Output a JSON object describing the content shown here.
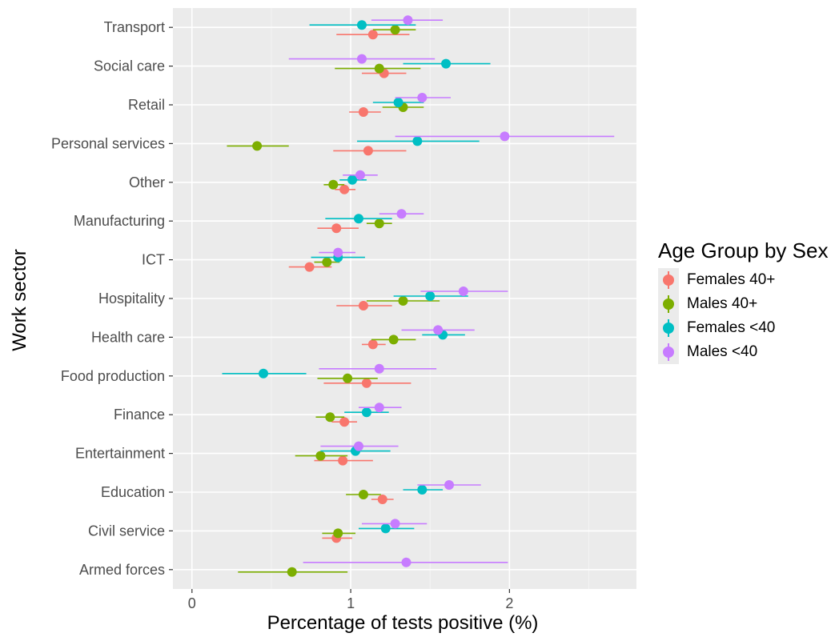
{
  "chart_data": {
    "type": "scatter",
    "xlabel": "Percentage of tests positive (%)",
    "ylabel": "Work sector",
    "xlim": [
      -0.12,
      2.8
    ],
    "x_ticks": [
      0,
      1,
      2
    ],
    "grid": true,
    "legend_title": "Age Group by Sex",
    "legend_position": "right",
    "categories": [
      "Transport",
      "Social care",
      "Retail",
      "Personal services",
      "Other",
      "Manufacturing",
      "ICT",
      "Hospitality",
      "Health care",
      "Food production",
      "Finance",
      "Entertainment",
      "Education",
      "Civil service",
      "Armed forces"
    ],
    "series": [
      {
        "name": "Females 40+",
        "color": "#F8766D",
        "values": [
          1.14,
          1.21,
          1.08,
          1.11,
          0.96,
          0.91,
          0.74,
          1.08,
          1.14,
          1.1,
          0.96,
          0.95,
          1.2,
          0.91,
          null
        ],
        "lower": [
          0.91,
          1.07,
          0.99,
          0.89,
          0.9,
          0.79,
          0.61,
          0.91,
          1.07,
          0.83,
          0.88,
          0.77,
          1.13,
          0.82,
          null
        ],
        "upper": [
          1.37,
          1.35,
          1.19,
          1.35,
          1.03,
          1.05,
          0.88,
          1.26,
          1.22,
          1.38,
          1.04,
          1.14,
          1.27,
          1.01,
          null
        ]
      },
      {
        "name": "Males 40+",
        "color": "#7CAE00",
        "values": [
          1.28,
          1.18,
          1.33,
          0.41,
          0.89,
          1.18,
          0.85,
          1.33,
          1.27,
          0.98,
          0.87,
          0.81,
          1.08,
          0.92,
          0.63
        ],
        "lower": [
          1.14,
          0.9,
          1.2,
          0.22,
          0.83,
          1.1,
          0.77,
          1.1,
          1.13,
          0.79,
          0.78,
          0.65,
          0.97,
          0.82,
          0.29
        ],
        "upper": [
          1.41,
          1.44,
          1.46,
          0.61,
          0.96,
          1.26,
          0.93,
          1.56,
          1.41,
          1.17,
          0.96,
          0.98,
          1.19,
          1.03,
          0.98
        ]
      },
      {
        "name": "Females <40",
        "color": "#00BFC4",
        "values": [
          1.07,
          1.6,
          1.3,
          1.42,
          1.01,
          1.05,
          0.92,
          1.5,
          1.58,
          0.45,
          1.1,
          1.03,
          1.45,
          1.22,
          null
        ],
        "lower": [
          0.74,
          1.33,
          1.14,
          1.04,
          0.93,
          0.84,
          0.75,
          1.27,
          1.45,
          0.19,
          0.96,
          0.81,
          1.33,
          1.05,
          null
        ],
        "upper": [
          1.41,
          1.88,
          1.46,
          1.81,
          1.1,
          1.26,
          1.09,
          1.74,
          1.72,
          0.72,
          1.24,
          1.25,
          1.58,
          1.4,
          null
        ]
      },
      {
        "name": "Males <40",
        "color": "#C77CFF",
        "values": [
          1.36,
          1.07,
          1.45,
          1.97,
          1.06,
          1.32,
          0.92,
          1.71,
          1.55,
          1.18,
          1.18,
          1.05,
          1.62,
          1.28,
          1.35
        ],
        "lower": [
          1.13,
          0.61,
          1.28,
          1.28,
          0.95,
          1.18,
          0.8,
          1.44,
          1.32,
          0.8,
          1.05,
          0.81,
          1.42,
          1.07,
          0.7
        ],
        "upper": [
          1.58,
          1.53,
          1.63,
          2.66,
          1.17,
          1.46,
          1.03,
          1.99,
          1.78,
          1.54,
          1.32,
          1.3,
          1.82,
          1.48,
          1.99
        ]
      }
    ]
  }
}
